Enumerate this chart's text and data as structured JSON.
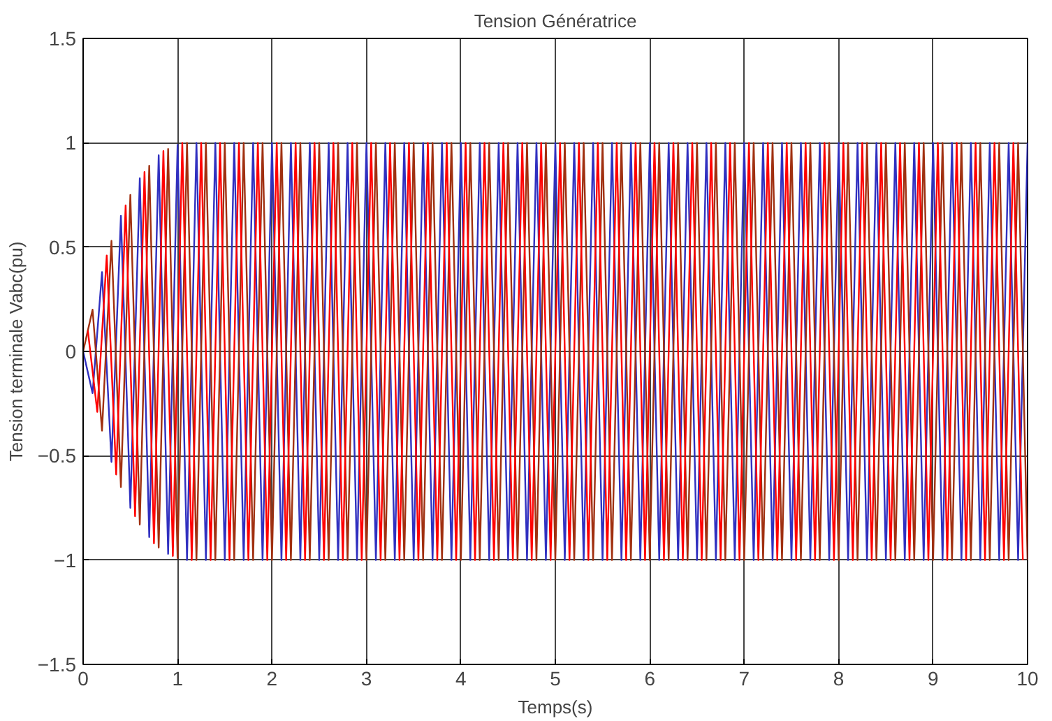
{
  "chart_data": {
    "type": "line",
    "title": "Tension Génératrice",
    "xlabel": "Temps(s)",
    "ylabel": "Tension terminale Vabc(pu)",
    "x": [
      0,
      0.1,
      0.2,
      0.3,
      0.4,
      0.5,
      0.6,
      0.7,
      0.8,
      0.9,
      1,
      1.1,
      1.2,
      1.3,
      1.4,
      1.5,
      1.6,
      1.7,
      1.8,
      1.9,
      2,
      2.1,
      2.2,
      2.3,
      2.4,
      2.5,
      2.6,
      2.7,
      2.8,
      2.9,
      3,
      3.1,
      3.2,
      3.3,
      3.4,
      3.5,
      3.6,
      3.7,
      3.8,
      3.9,
      4,
      4.1,
      4.2,
      4.3,
      4.4,
      4.5,
      4.6,
      4.7,
      4.8,
      4.9,
      5,
      5.1,
      5.2,
      5.3,
      5.4,
      5.5,
      5.6,
      5.7,
      5.8,
      5.9,
      6,
      6.1,
      6.2,
      6.3,
      6.4,
      6.5,
      6.6,
      6.7,
      6.8,
      6.9,
      7,
      7.1,
      7.2,
      7.3,
      7.4,
      7.5,
      7.6,
      7.7,
      7.8,
      7.9,
      8,
      8.1,
      8.2,
      8.3,
      8.4,
      8.5,
      8.6,
      8.7,
      8.8,
      8.9,
      9,
      9.1,
      9.2,
      9.3,
      9.4,
      9.5,
      9.6,
      9.7,
      9.8,
      9.9,
      10
    ],
    "series": [
      {
        "color": "#3030c0",
        "values": [
          0,
          -0.2,
          0.38,
          -0.53,
          0.65,
          -0.75,
          0.83,
          -0.89,
          0.94,
          -0.97,
          0.99,
          -1,
          1,
          -1,
          1,
          -1,
          1,
          -1,
          1,
          -1,
          1,
          -1,
          1,
          -1,
          1,
          -1,
          1,
          -1,
          1,
          -1,
          1,
          -1,
          1,
          -1,
          1,
          -1,
          1,
          -1,
          1,
          -1,
          1,
          -1,
          1,
          -1,
          1,
          -1,
          1,
          -1,
          1,
          -1,
          1,
          -1,
          1,
          -1,
          1,
          -1,
          1,
          -1,
          1,
          -1,
          1,
          -1,
          1,
          -1,
          1,
          -1,
          1,
          -1,
          1,
          -1,
          1,
          -1,
          1,
          -1,
          1,
          -1,
          1,
          -1,
          1,
          -1,
          1,
          -1,
          1,
          -1,
          1,
          -1,
          1,
          -1,
          1,
          -1,
          1,
          -1,
          1,
          -1,
          1,
          -1,
          1,
          -1,
          1,
          -1,
          1
        ]
      },
      {
        "color": "#a03010",
        "values": [
          0,
          0.2,
          -0.38,
          0.53,
          -0.65,
          0.75,
          -0.83,
          0.89,
          -0.94,
          0.97,
          -0.99,
          1,
          -1,
          1,
          -1,
          1,
          -1,
          1,
          -1,
          1,
          -1,
          1,
          -1,
          1,
          -1,
          1,
          -1,
          1,
          -1,
          1,
          -1,
          1,
          -1,
          1,
          -1,
          1,
          -1,
          1,
          -1,
          1,
          -1,
          1,
          -1,
          1,
          -1,
          1,
          -1,
          1,
          -1,
          1,
          -1,
          1,
          -1,
          1,
          -1,
          1,
          -1,
          1,
          -1,
          1,
          -1,
          1,
          -1,
          1,
          -1,
          1,
          -1,
          1,
          -1,
          1,
          -1,
          1,
          -1,
          1,
          -1,
          1,
          -1,
          1,
          -1,
          1,
          -1,
          1,
          -1,
          1,
          -1,
          1,
          -1,
          1,
          -1,
          1,
          -1,
          1,
          -1,
          1,
          -1,
          1,
          -1,
          1,
          -1,
          1,
          -1
        ]
      },
      {
        "color": "#ff0000",
        "x": [
          0.05,
          0.15,
          0.25,
          0.35,
          0.45,
          0.55,
          0.65,
          0.75,
          0.85,
          0.95,
          1.05,
          1.15,
          1.25,
          1.35,
          1.45,
          1.55,
          1.65,
          1.75,
          1.85,
          1.95,
          2.05,
          2.15,
          2.25,
          2.35,
          2.45,
          2.55,
          2.65,
          2.75,
          2.85,
          2.95,
          3.05,
          3.15,
          3.25,
          3.35,
          3.45,
          3.55,
          3.65,
          3.75,
          3.85,
          3.95,
          4.05,
          4.15,
          4.25,
          4.35,
          4.45,
          4.55,
          4.65,
          4.75,
          4.85,
          4.95,
          5.05,
          5.15,
          5.25,
          5.35,
          5.45,
          5.55,
          5.65,
          5.75,
          5.85,
          5.95,
          6.05,
          6.15,
          6.25,
          6.35,
          6.45,
          6.55,
          6.65,
          6.75,
          6.85,
          6.95,
          7.05,
          7.15,
          7.25,
          7.35,
          7.45,
          7.55,
          7.65,
          7.75,
          7.85,
          7.95,
          8.05,
          8.15,
          8.25,
          8.35,
          8.45,
          8.55,
          8.65,
          8.75,
          8.85,
          8.95,
          9.05,
          9.15,
          9.25,
          9.35,
          9.45,
          9.55,
          9.65,
          9.75,
          9.85,
          9.95
        ],
        "values": [
          0.1,
          -0.29,
          0.46,
          -0.59,
          0.7,
          -0.79,
          0.86,
          -0.92,
          0.96,
          -0.98,
          1,
          -1,
          1,
          -1,
          1,
          -1,
          1,
          -1,
          1,
          -1,
          1,
          -1,
          1,
          -1,
          1,
          -1,
          1,
          -1,
          1,
          -1,
          1,
          -1,
          1,
          -1,
          1,
          -1,
          1,
          -1,
          1,
          -1,
          1,
          -1,
          1,
          -1,
          1,
          -1,
          1,
          -1,
          1,
          -1,
          1,
          -1,
          1,
          -1,
          1,
          -1,
          1,
          -1,
          1,
          -1,
          1,
          -1,
          1,
          -1,
          1,
          -1,
          1,
          -1,
          1,
          -1,
          1,
          -1,
          1,
          -1,
          1,
          -1,
          1,
          -1,
          1,
          -1,
          1,
          -1,
          1,
          -1,
          1,
          -1,
          1,
          -1,
          1,
          -1,
          1,
          -1,
          1,
          -1,
          1,
          -1,
          1,
          -1,
          1,
          -1
        ]
      }
    ],
    "xlim": [
      0,
      10
    ],
    "xticks": [
      0,
      1,
      2,
      3,
      4,
      5,
      6,
      7,
      8,
      9,
      10
    ],
    "ylim": [
      -1.5,
      1.5
    ],
    "yticks": [
      -1.5,
      -1,
      -0.5,
      0,
      0.5,
      1,
      1.5
    ],
    "grid": true,
    "marker": "none",
    "line_style": "solid"
  }
}
